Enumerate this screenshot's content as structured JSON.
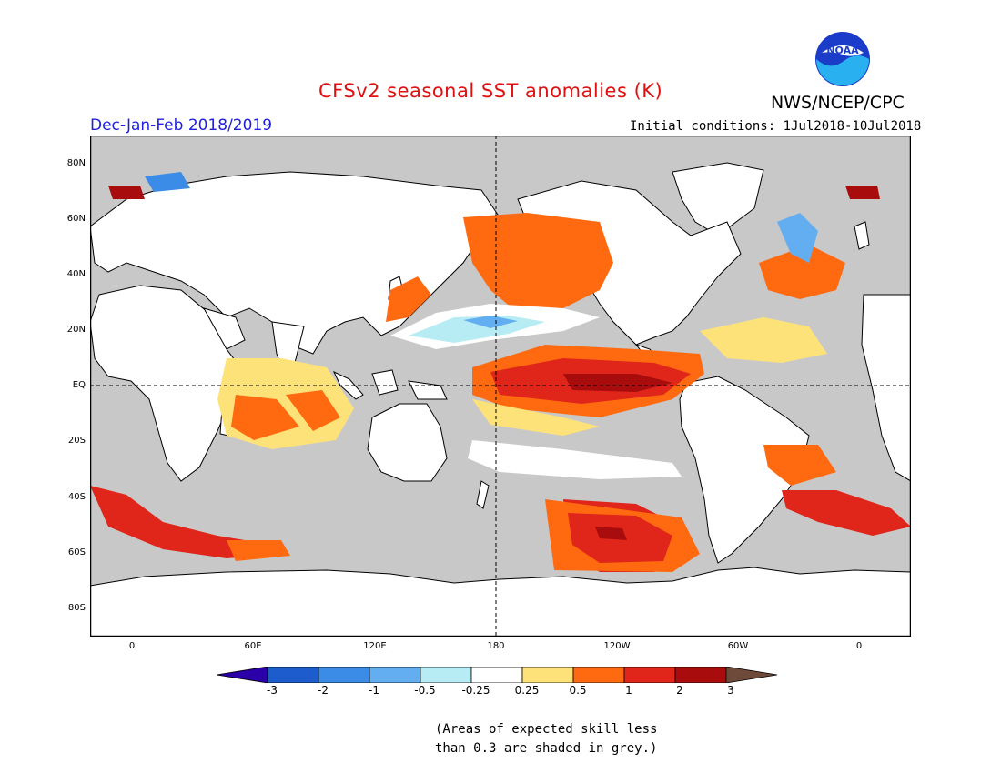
{
  "header": {
    "title": "CFSv2 seasonal SST anomalies (K)",
    "organization": "NWS/NCEP/CPC",
    "logo_text": "NOAA",
    "period": "Dec-Jan-Feb 2018/2019",
    "initial_conditions": "Initial conditions: 1Jul2018-10Jul2018"
  },
  "map": {
    "lat_labels": [
      "80N",
      "60N",
      "40N",
      "20N",
      "EQ",
      "20S",
      "40S",
      "60S",
      "80S"
    ],
    "lon_labels": [
      "0",
      "60E",
      "120E",
      "180",
      "120W",
      "60W",
      "0"
    ]
  },
  "colorbar": {
    "labels": [
      "-3",
      "-2",
      "-1",
      "-0.5",
      "-0.25",
      "0.25",
      "0.5",
      "1",
      "2",
      "3"
    ],
    "colors": [
      "#2c00a8",
      "#1c5ccc",
      "#3a8ce6",
      "#62aef0",
      "#b8ecf4",
      "#ffffff",
      "#fde27a",
      "#ff6a10",
      "#e0261a",
      "#a80c0c",
      "#6e4a3a"
    ]
  },
  "note": {
    "line1": "(Areas of expected skill less",
    "line2": "than 0.3 are shaded in grey.)"
  },
  "colors": {
    "title": "#e01010",
    "period": "#2020e0",
    "grey_mask": "#c8c8c8"
  }
}
